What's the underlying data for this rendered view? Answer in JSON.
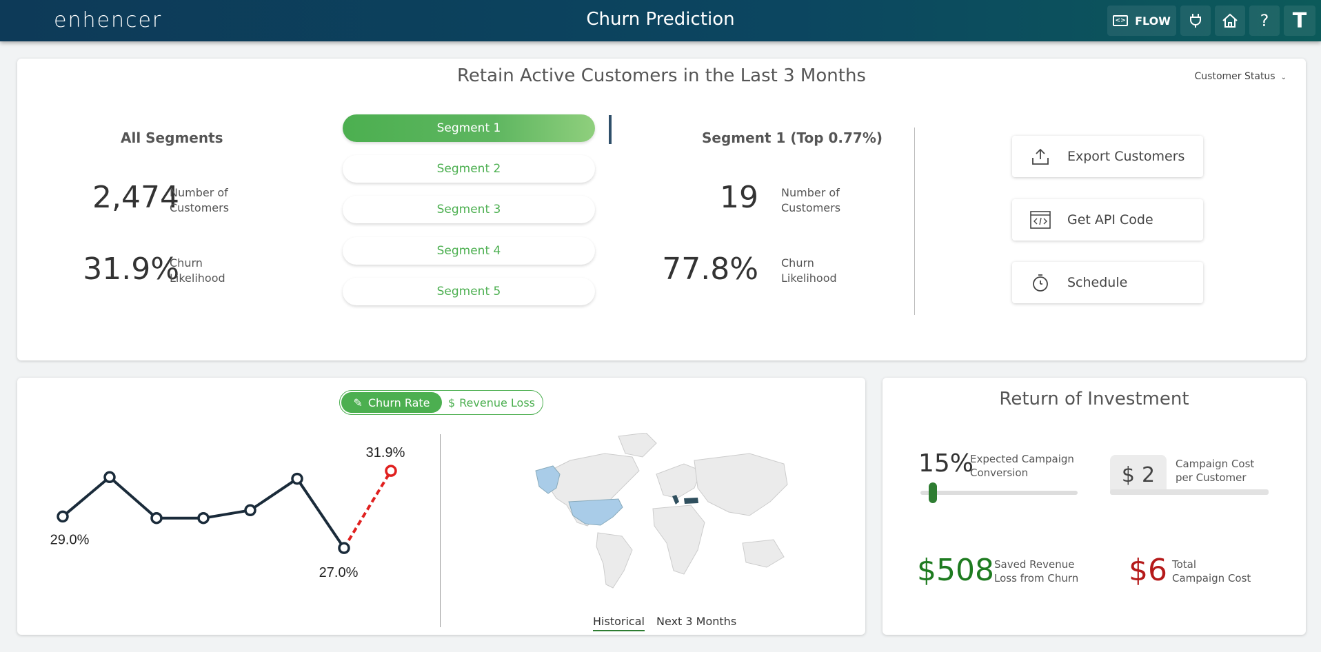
{
  "header": {
    "logo": "enhencer",
    "title": "Churn Prediction",
    "flow_label": "FLOW",
    "help_label": "?",
    "user_initial": "T"
  },
  "top_panel": {
    "title": "Retain Active Customers in the Last 3 Months",
    "status_dropdown": "Customer Status",
    "all_segments": {
      "title": "All Segments",
      "customers_value": "2,474",
      "customers_label_1": "Number of",
      "customers_label_2": "Customers",
      "churn_value": "31.9%",
      "churn_label_1": "Churn",
      "churn_label_2": "Likelihood"
    },
    "segments": [
      "Segment 1",
      "Segment 2",
      "Segment 3",
      "Segment 4",
      "Segment 5"
    ],
    "selected_segment": {
      "title": "Segment 1 (Top 0.77%)",
      "customers_value": "19",
      "customers_label_1": "Number of",
      "customers_label_2": "Customers",
      "churn_value": "77.8%",
      "churn_label_1": "Churn",
      "churn_label_2": "Likelihood"
    },
    "actions": [
      "Export Customers",
      "Get API Code",
      "Schedule"
    ]
  },
  "chart_panel": {
    "toggle": {
      "churn_rate": "Churn Rate",
      "revenue_loss": "Revenue Loss",
      "dollar_symbol": "$"
    },
    "map_tabs": {
      "historical": "Historical",
      "next": "Next 3 Months"
    }
  },
  "chart_data": {
    "type": "line",
    "points": [
      29.0,
      31.5,
      28.9,
      28.9,
      29.4,
      31.4,
      27.0
    ],
    "forecast": 31.9,
    "labels": [
      "29.0%",
      "27.0%",
      "31.9%"
    ],
    "ylim": [
      26,
      33
    ],
    "colors": {
      "line": "#1a2b3a",
      "forecast": "#e0201f"
    }
  },
  "roi": {
    "title": "Return of Investment",
    "conversion_value": "15%",
    "conversion_label_1": "Expected Campaign",
    "conversion_label_2": "Conversion",
    "conversion_percent": 15,
    "cost_currency": "$",
    "cost_value": "2",
    "cost_label_1": "Campaign Cost",
    "cost_label_2": "per Customer",
    "saved_value": "$508",
    "saved_label_1": "Saved Revenue",
    "saved_label_2": "Loss from Churn",
    "total_value": "$6",
    "total_label_1": "Total",
    "total_label_2": "Campaign Cost"
  },
  "colors": {
    "accent": "#4caf50",
    "header": "#0d3a58",
    "positive": "#1e7b20",
    "negative": "#b51a1a"
  }
}
